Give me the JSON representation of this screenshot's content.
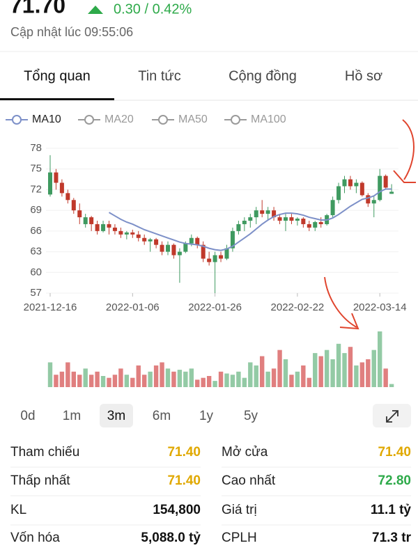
{
  "header": {
    "price": "71.70",
    "change": "0.30 / 0.42%",
    "change_color": "#2eaa4a",
    "updated": "Cập nhật lúc 09:55:06"
  },
  "tabs": [
    "Tổng quan",
    "Tin tức",
    "Cộng đồng",
    "Hồ sơ"
  ],
  "chart_data": {
    "type": "candlestick",
    "categories": [
      "2021-12-16",
      null,
      null,
      null,
      null,
      null,
      null,
      null,
      null,
      null,
      null,
      null,
      null,
      null,
      "2022-01-06",
      null,
      null,
      null,
      null,
      null,
      null,
      null,
      null,
      null,
      null,
      null,
      null,
      null,
      "2022-01-26",
      null,
      null,
      null,
      null,
      null,
      null,
      null,
      null,
      null,
      null,
      null,
      null,
      null,
      "2022-02-22",
      null,
      null,
      null,
      null,
      null,
      null,
      null,
      null,
      null,
      null,
      null,
      null,
      null,
      "2022-03-14",
      null,
      null
    ],
    "open": [
      71.3,
      74.5,
      73,
      71.5,
      70.5,
      69,
      67,
      68,
      67,
      66,
      67,
      66.5,
      66,
      65.5,
      65.8,
      65.5,
      65,
      64.5,
      64.8,
      64,
      63,
      64,
      62.5,
      63,
      64.2,
      65,
      64,
      62,
      61.5,
      62.5,
      62,
      63.5,
      66,
      67,
      67.5,
      68,
      69,
      68.5,
      69,
      68,
      67.5,
      68,
      67.5,
      67.8,
      67,
      66.5,
      67.3,
      67,
      68.3,
      70.5,
      72.5,
      73.5,
      72.5,
      73,
      71.2,
      70,
      70.5,
      74,
      71.4
    ],
    "high": [
      77,
      75,
      73.5,
      72,
      70.8,
      70,
      68.5,
      68.2,
      67.5,
      67.5,
      67.5,
      67,
      66.5,
      66,
      66.2,
      66,
      65.5,
      65,
      65,
      64.5,
      64.5,
      64.2,
      63.5,
      64.5,
      65.5,
      65.2,
      64.5,
      63,
      63,
      63,
      64,
      66.5,
      67.5,
      68,
      68.5,
      69.5,
      70.5,
      69.5,
      69.5,
      68.5,
      68.5,
      68.5,
      68,
      68,
      67.5,
      67.5,
      68,
      68.5,
      71,
      73,
      74,
      74,
      73.5,
      73.2,
      71.5,
      71,
      75,
      74.2,
      72.8
    ],
    "low": [
      71,
      72,
      71,
      70,
      68.5,
      67,
      66.5,
      66,
      65.5,
      65.8,
      65.5,
      65.5,
      65,
      64.8,
      65,
      64.5,
      64,
      63,
      63.5,
      62.5,
      62.5,
      62,
      58.5,
      62.8,
      63.8,
      63.5,
      61.5,
      61,
      57,
      61.5,
      61.8,
      63,
      65.5,
      66,
      66.5,
      67,
      68,
      67.5,
      67.5,
      67,
      66,
      67,
      66.8,
      66.5,
      66,
      66,
      66.5,
      66.8,
      68,
      70,
      71.5,
      72,
      71.5,
      71,
      69.5,
      68,
      70.3,
      72,
      71.4
    ],
    "close": [
      74.5,
      73,
      71.5,
      70.5,
      69,
      68,
      68,
      67,
      66,
      67,
      66.5,
      66,
      65.5,
      65.8,
      65.5,
      65,
      64.5,
      64.8,
      64,
      63,
      64,
      62.5,
      63,
      64.2,
      65,
      64,
      62,
      61.5,
      62.5,
      62,
      63.5,
      66,
      67,
      67.5,
      68,
      69,
      68.5,
      69,
      68,
      67.5,
      68,
      67.5,
      67.8,
      67,
      66.5,
      67.3,
      67,
      68.3,
      70.5,
      72.5,
      73.5,
      72.5,
      73,
      71.2,
      70,
      70.5,
      74,
      72.3,
      71.7
    ],
    "volume": [
      40,
      20,
      25,
      40,
      25,
      20,
      30,
      20,
      25,
      18,
      15,
      20,
      30,
      20,
      15,
      35,
      20,
      25,
      35,
      40,
      30,
      25,
      28,
      25,
      30,
      12,
      15,
      18,
      10,
      25,
      22,
      20,
      25,
      15,
      40,
      35,
      50,
      25,
      30,
      60,
      45,
      20,
      25,
      35,
      15,
      55,
      50,
      60,
      45,
      70,
      55,
      65,
      35,
      40,
      45,
      60,
      90,
      30,
      5
    ],
    "up_color": "#3f9a60",
    "down_color": "#c0392b",
    "volume_up_color": "#93caa5",
    "volume_down_color": "#e07f7f",
    "ylim": [
      57,
      78
    ],
    "yticks": [
      57,
      60,
      63,
      66,
      69,
      72,
      75,
      78
    ],
    "grid": true,
    "indicators": [
      {
        "name": "MA10",
        "color": "#7d90c8",
        "active": true,
        "values": [
          null,
          null,
          null,
          null,
          null,
          null,
          null,
          null,
          null,
          null,
          68.7,
          68.2,
          67.7,
          67.3,
          67,
          66.6,
          66.2,
          65.9,
          65.6,
          65.3,
          65,
          64.7,
          64.4,
          64.2,
          64.1,
          64,
          63.8,
          63.5,
          63.3,
          63.2,
          63.4,
          63.8,
          64.4,
          65,
          65.6,
          66.3,
          67,
          67.6,
          68.1,
          68.4,
          68.6,
          68.6,
          68.5,
          68.3,
          68,
          67.8,
          67.6,
          67.6,
          67.9,
          68.4,
          69,
          69.6,
          70.1,
          70.6,
          70.8,
          71.1,
          71.7,
          72.1,
          72.1
        ]
      },
      {
        "name": "MA20",
        "color": "#9a9a9a",
        "active": false
      },
      {
        "name": "MA50",
        "color": "#9a9a9a",
        "active": false
      },
      {
        "name": "MA100",
        "color": "#9a9a9a",
        "active": false
      }
    ]
  },
  "ranges": [
    "0d",
    "1m",
    "3m",
    "6m",
    "1y",
    "5y"
  ],
  "selected_range": "3m",
  "stats": [
    {
      "label": "Tham chiếu",
      "value": "71.40",
      "color": "#e0a800"
    },
    {
      "label": "Mở cửa",
      "value": "71.40",
      "color": "#e0a800"
    },
    {
      "label": "Thấp nhất",
      "value": "71.40",
      "color": "#e0a800"
    },
    {
      "label": "Cao nhất",
      "value": "72.80",
      "color": "#2eaa4a"
    },
    {
      "label": "KL",
      "value": "154,800",
      "color": "#111111"
    },
    {
      "label": "Giá trị",
      "value": "11.1 tỷ",
      "color": "#111111"
    },
    {
      "label": "Vốn hóa",
      "value": "5,088.0 tỷ",
      "color": "#111111"
    },
    {
      "label": "CPLH",
      "value": "71.3 tr",
      "color": "#111111"
    }
  ]
}
